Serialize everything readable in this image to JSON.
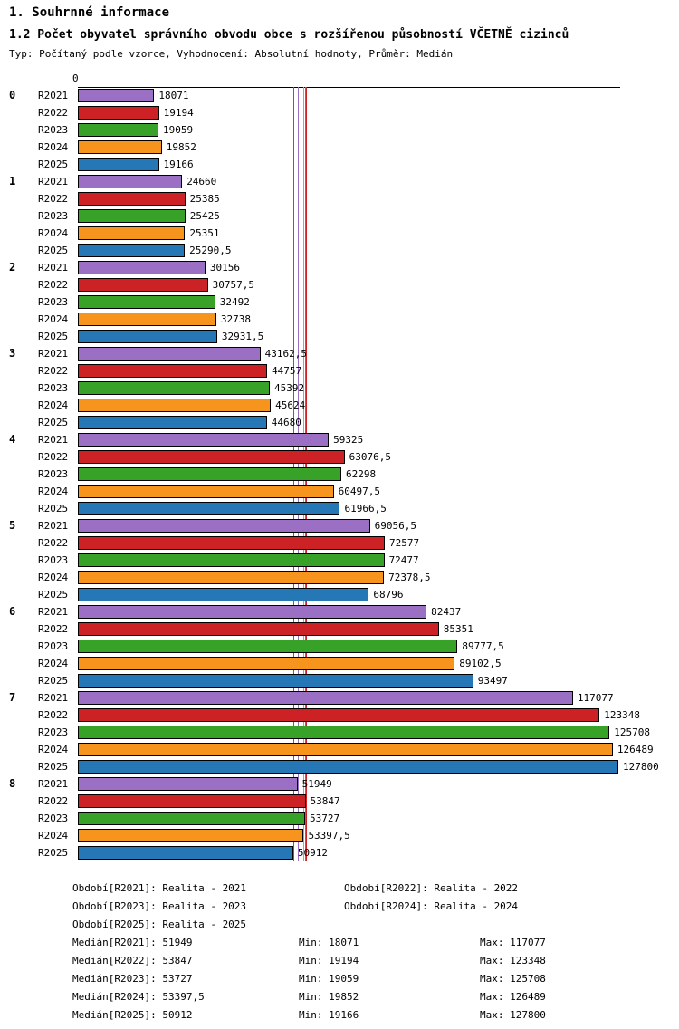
{
  "header": {
    "title": "1. Souhrnné informace",
    "subtitle": "1.2 Počet obyvatel správního obvodu obce s rozšířenou působností VČETNĚ cizinců",
    "meta": "Typ: Počítaný podle vzorce, Vyhodnocení: Absolutní hodnoty, Průměr: Medián"
  },
  "chart_data": {
    "type": "bar",
    "orientation": "horizontal",
    "axis_origin_label": "0",
    "x_range": [
      0,
      127800
    ],
    "series_labels": [
      "R2021",
      "R2022",
      "R2023",
      "R2024",
      "R2025"
    ],
    "series_colors": [
      "#9a6fc4",
      "#cc2226",
      "#38a228",
      "#f7941d",
      "#2677b5"
    ],
    "groups": [
      {
        "label": "0",
        "values": [
          "18071",
          "19194",
          "19059",
          "19852",
          "19166"
        ]
      },
      {
        "label": "1",
        "values": [
          "24660",
          "25385",
          "25425",
          "25351",
          "25290,5"
        ]
      },
      {
        "label": "2",
        "values": [
          "30156",
          "30757,5",
          "32492",
          "32738",
          "32931,5"
        ]
      },
      {
        "label": "3",
        "values": [
          "43162,5",
          "44757",
          "45392",
          "45624",
          "44680"
        ]
      },
      {
        "label": "4",
        "values": [
          "59325",
          "63076,5",
          "62298",
          "60497,5",
          "61966,5"
        ]
      },
      {
        "label": "5",
        "values": [
          "69056,5",
          "72577",
          "72477",
          "72378,5",
          "68796"
        ]
      },
      {
        "label": "6",
        "values": [
          "82437",
          "85351",
          "89777,5",
          "89102,5",
          "93497"
        ]
      },
      {
        "label": "7",
        "values": [
          "117077",
          "123348",
          "125708",
          "126489",
          "127800"
        ]
      },
      {
        "label": "8",
        "values": [
          "51949",
          "53847",
          "53727",
          "53397,5",
          "50912"
        ]
      }
    ],
    "medians": [
      {
        "series": "R2021",
        "value": "51949"
      },
      {
        "series": "R2022",
        "value": "53847"
      },
      {
        "series": "R2023",
        "value": "53727"
      },
      {
        "series": "R2024",
        "value": "53397,5"
      },
      {
        "series": "R2025",
        "value": "50912"
      }
    ]
  },
  "legend": {
    "periods": [
      "Období[R2021]: Realita - 2021",
      "Období[R2022]: Realita - 2022",
      "Období[R2023]: Realita - 2023",
      "Období[R2024]: Realita - 2024",
      "Období[R2025]: Realita - 2025"
    ],
    "stats": [
      {
        "median": "Medián[R2021]: 51949",
        "min": "Min: 18071",
        "max": "Max: 117077"
      },
      {
        "median": "Medián[R2022]: 53847",
        "min": "Min: 19194",
        "max": "Max: 123348"
      },
      {
        "median": "Medián[R2023]: 53727",
        "min": "Min: 19059",
        "max": "Max: 125708"
      },
      {
        "median": "Medián[R2024]: 53397,5",
        "min": "Min: 19852",
        "max": "Max: 126489"
      },
      {
        "median": "Medián[R2025]: 50912",
        "min": "Min: 19166",
        "max": "Max: 127800"
      }
    ]
  }
}
